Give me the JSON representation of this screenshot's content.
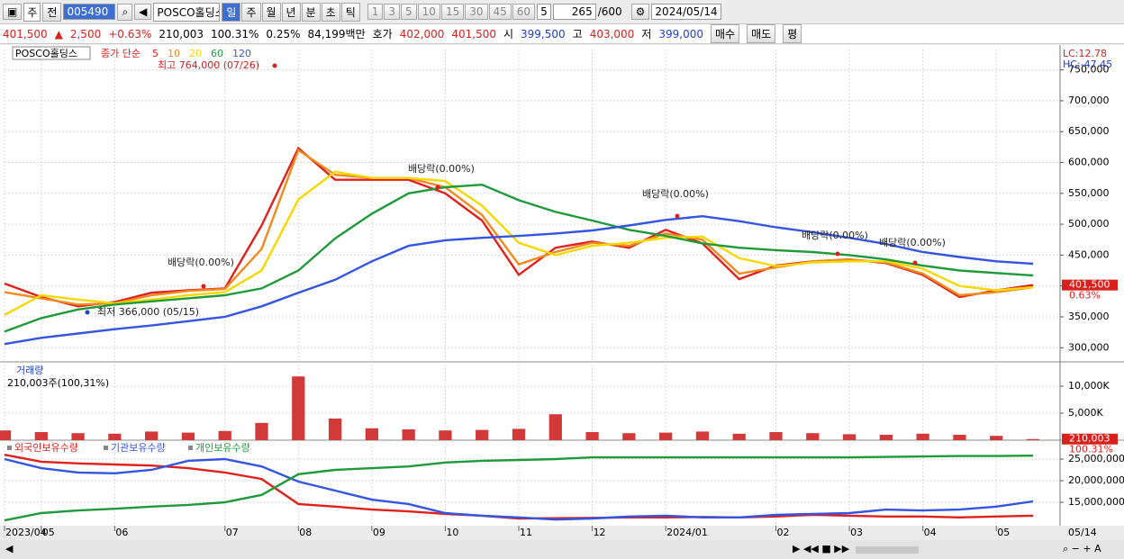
{
  "toolbar": {
    "market": "주",
    "prev": "전",
    "code": "005490",
    "name": "POSCO홀딩스",
    "periods": [
      "일",
      "주",
      "월",
      "년",
      "분",
      "초",
      "틱"
    ],
    "intervals": [
      "1",
      "3",
      "5",
      "10",
      "15",
      "30",
      "45",
      "60"
    ],
    "interval": "5",
    "count": "265",
    "max": "/600",
    "date": "2024/05/14"
  },
  "quote": {
    "price": "401,500",
    "arrow": "▲",
    "change": "2,500",
    "rate": "+0.63%",
    "volume": "210,003",
    "vol_rate": "100.31%",
    "turnover": "0.25%",
    "amount": "84,199백만",
    "bid_label": "호가",
    "ask": "402,000",
    "bid": "401,500",
    "open_label": "시",
    "open": "399,500",
    "high_label": "고",
    "high": "403,000",
    "low_label": "저",
    "low": "399,000",
    "buy": "매수",
    "sell": "매도",
    "avg": "평"
  },
  "chart_data": [
    {
      "type": "line",
      "name_tag": "POSCO홀딩스",
      "subtitle": "종가 단순",
      "lc": "LC:12.78",
      "hc": "HC:-47.45",
      "grid": true,
      "ylim": [
        280000,
        783000
      ],
      "yticks": [
        {
          "value": 300000,
          "label": "300,000"
        },
        {
          "value": 350000,
          "label": "350,000"
        },
        {
          "value": 400000,
          "label": "400,000"
        },
        {
          "value": 450000,
          "label": "450,000"
        },
        {
          "value": 500000,
          "label": "500,000"
        },
        {
          "value": 550000,
          "label": "550,000"
        },
        {
          "value": 600000,
          "label": "600,000"
        },
        {
          "value": 650000,
          "label": "650,000"
        },
        {
          "value": 700000,
          "label": "700,000"
        },
        {
          "value": 750000,
          "label": "750,000"
        }
      ],
      "series": [
        {
          "name": "5",
          "color": "#e0201c",
          "values": [
            404000,
            382000,
            367000,
            374000,
            389000,
            393000,
            396000,
            498000,
            623000,
            572000,
            572000,
            572000,
            550000,
            506000,
            418000,
            462000,
            472000,
            462000,
            491000,
            469000,
            411000,
            433000,
            440000,
            443000,
            437000,
            418000,
            382000,
            393000,
            401500
          ]
        },
        {
          "name": "10",
          "color": "#f08a1c",
          "values": [
            390000,
            380000,
            370000,
            372000,
            385000,
            392000,
            395000,
            460000,
            620000,
            580000,
            575000,
            575000,
            560000,
            515000,
            435000,
            455000,
            470000,
            465000,
            485000,
            475000,
            420000,
            430000,
            440000,
            443000,
            438000,
            420000,
            385000,
            390000,
            398000
          ]
        },
        {
          "name": "20",
          "color": "#f5d800",
          "values": [
            353000,
            385000,
            378000,
            372000,
            378000,
            385000,
            390000,
            425000,
            540000,
            585000,
            575000,
            575000,
            570000,
            530000,
            470000,
            450000,
            465000,
            470000,
            478000,
            480000,
            445000,
            432000,
            438000,
            440000,
            440000,
            428000,
            400000,
            393000,
            398000
          ]
        },
        {
          "name": "60",
          "color": "#1f9a3a",
          "values": [
            326000,
            348000,
            362000,
            370000,
            375000,
            380000,
            385000,
            396000,
            425000,
            477000,
            517000,
            550000,
            560000,
            564000,
            539000,
            520000,
            506000,
            491000,
            481000,
            469000,
            462000,
            458000,
            455000,
            450000,
            443000,
            433000,
            425000,
            421000,
            417000
          ]
        },
        {
          "name": "120",
          "color": "#3355e0",
          "values": [
            306000,
            316000,
            323000,
            330000,
            336000,
            343000,
            350000,
            367000,
            389000,
            410000,
            440000,
            465000,
            474000,
            478000,
            481000,
            485000,
            490000,
            498000,
            507000,
            513000,
            505000,
            495000,
            487000,
            478000,
            468000,
            455000,
            447000,
            440000,
            436000
          ]
        }
      ],
      "annotations": [
        "최고 764,000 (07/26)",
        "최저 366,000 (05/15)",
        "배당락(0.00%)",
        "배당락(0.00%)",
        "배당락(0.00%)",
        "배당락(0.00%)",
        "배당락(0.00%)"
      ],
      "last_label": "401,500",
      "change_label": "0.63%"
    },
    {
      "type": "bar",
      "title": "거래량",
      "subtitle": "210,003주(100,31%)",
      "color": "#d23a3a",
      "grid": true,
      "ylim": [
        0,
        14000000
      ],
      "yticks": [
        {
          "value": 5000000,
          "label": "5,000K"
        },
        {
          "value": 10000000,
          "label": "10,000K"
        }
      ],
      "values": [
        1800000,
        1500000,
        1300000,
        1200000,
        1600000,
        1400000,
        1700000,
        3200000,
        11800000,
        4000000,
        2200000,
        2000000,
        1800000,
        1900000,
        2100000,
        4800000,
        1500000,
        1300000,
        1400000,
        1600000,
        1200000,
        1500000,
        1300000,
        1100000,
        1000000,
        1200000,
        1000000,
        800000,
        210003
      ],
      "last_label": "210,003",
      "change_label": "100.31%"
    },
    {
      "type": "line",
      "grid": true,
      "ylim": [
        9580000,
        28750000
      ],
      "yticks": [
        {
          "value": 15000000,
          "label": "15,000,000"
        },
        {
          "value": 20000000,
          "label": "20,000,000"
        },
        {
          "value": 25000000,
          "label": "25,000,000"
        }
      ],
      "categories": [
        "2023/04",
        "05",
        null,
        "06",
        null,
        null,
        "07",
        null,
        "08",
        null,
        "09",
        null,
        "10",
        null,
        "11",
        null,
        "12",
        null,
        "2024/01",
        null,
        null,
        "02",
        null,
        "03",
        null,
        "04",
        null,
        "05",
        null
      ],
      "x_end_label": "05/14",
      "series": [
        {
          "name": "외국인보유수량",
          "color": "#e0201c",
          "values": [
            26000000,
            24400000,
            24000000,
            23750000,
            23500000,
            22900000,
            21900000,
            20400000,
            14600000,
            14000000,
            13300000,
            12900000,
            12300000,
            11900000,
            11250000,
            11300000,
            11400000,
            11500000,
            11500000,
            11600000,
            11500000,
            11700000,
            12100000,
            11900000,
            11700000,
            11700000,
            11500000,
            11700000,
            11900000
          ]
        },
        {
          "name": "기관보유수량",
          "color": "#3355e0",
          "values": [
            25000000,
            22900000,
            21900000,
            21700000,
            22500000,
            24600000,
            25000000,
            23300000,
            19800000,
            17700000,
            15600000,
            14600000,
            12500000,
            11900000,
            11500000,
            11000000,
            11250000,
            11700000,
            11900000,
            11500000,
            11500000,
            12100000,
            12300000,
            12500000,
            13300000,
            13100000,
            13300000,
            14000000,
            15200000
          ]
        },
        {
          "name": "개인보유수량",
          "color": "#1f9a3a",
          "values": [
            10800000,
            12500000,
            13100000,
            13500000,
            14000000,
            14400000,
            15000000,
            16700000,
            21500000,
            22500000,
            22900000,
            23300000,
            24200000,
            24600000,
            24800000,
            25000000,
            25400000,
            25400000,
            25400000,
            25400000,
            25400000,
            25400000,
            25400000,
            25400000,
            25500000,
            25600000,
            25700000,
            25700000,
            25800000
          ]
        }
      ]
    }
  ]
}
